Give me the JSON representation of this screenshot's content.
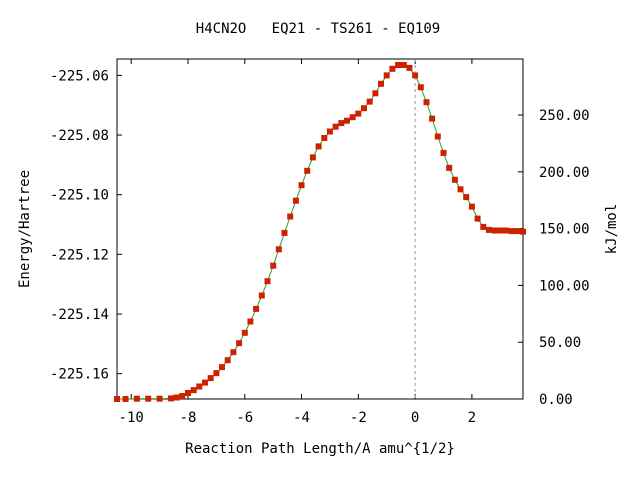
{
  "chart_data": {
    "type": "line",
    "title": "H4CN2O   EQ21 - TS261 - EQ109",
    "xlabel": "Reaction Path Length/A amu^{1/2}",
    "ylabel": "Energy/Hartree",
    "y2label": "kJ/mol",
    "xlim": [
      -10.5,
      3.8
    ],
    "ylim": [
      -225.1685,
      -225.0545
    ],
    "x_ticks": [
      -10,
      -8,
      -6,
      -4,
      -2,
      0,
      2
    ],
    "x_tick_labels": [
      "-10",
      "-8",
      "-6",
      "-4",
      "-2",
      "0",
      "2"
    ],
    "y_ticks": [
      -225.06,
      -225.08,
      -225.1,
      -225.12,
      -225.14,
      -225.16
    ],
    "y_tick_labels": [
      "-225.06",
      "-225.08",
      "-225.10",
      "-225.12",
      "-225.14",
      "-225.16"
    ],
    "y2_ticks": [
      0,
      50,
      100,
      150,
      200,
      250
    ],
    "y2_tick_labels": [
      "0.00",
      "50.00",
      "100.00",
      "150.00",
      "200.00",
      "250.00"
    ],
    "y2_zero_energy": -225.1685,
    "hartree_to_kj": 2625.5,
    "ts_marker_x": 0,
    "grid": false,
    "colors": {
      "line": "#2ca02c",
      "marker": "#cc2200",
      "ts_line": "#999999"
    },
    "series": [
      {
        "x": [
          -10.5,
          -10.2,
          -9.8,
          -9.4,
          -9.0,
          -8.6,
          -8.4,
          -8.2,
          -8.0,
          -7.8,
          -7.6,
          -7.4,
          -7.2,
          -7.0,
          -6.8,
          -6.6,
          -6.4,
          -6.2,
          -6.0,
          -5.8,
          -5.6,
          -5.4,
          -5.2,
          -5.0,
          -4.8,
          -4.6,
          -4.4,
          -4.2,
          -4.0,
          -3.8,
          -3.6,
          -3.4,
          -3.2,
          -3.0,
          -2.8,
          -2.6,
          -2.4,
          -2.2,
          -2.0,
          -1.8,
          -1.6,
          -1.4,
          -1.2,
          -1.0,
          -0.8,
          -0.6,
          -0.4,
          -0.2,
          0.0,
          0.2,
          0.4,
          0.6,
          0.8,
          1.0,
          1.2,
          1.4,
          1.6,
          1.8,
          2.0,
          2.2,
          2.4,
          2.6,
          2.8,
          3.0,
          3.2,
          3.4,
          3.6,
          3.8
        ],
        "y": [
          -225.1685,
          -225.1685,
          -225.1684,
          -225.1684,
          -225.1684,
          -225.1683,
          -225.168,
          -225.1675,
          -225.1665,
          -225.1655,
          -225.1643,
          -225.163,
          -225.1615,
          -225.1598,
          -225.1578,
          -225.1555,
          -225.1528,
          -225.1498,
          -225.1463,
          -225.1425,
          -225.1383,
          -225.1338,
          -225.129,
          -225.1238,
          -225.1183,
          -225.1128,
          -225.1073,
          -225.102,
          -225.0968,
          -225.092,
          -225.0875,
          -225.0838,
          -225.081,
          -225.0788,
          -225.0772,
          -225.076,
          -225.0752,
          -225.074,
          -225.0728,
          -225.071,
          -225.0688,
          -225.066,
          -225.0628,
          -225.06,
          -225.0578,
          -225.0565,
          -225.0565,
          -225.0575,
          -225.06,
          -225.064,
          -225.069,
          -225.0745,
          -225.0805,
          -225.086,
          -225.091,
          -225.095,
          -225.0982,
          -225.1008,
          -225.104,
          -225.108,
          -225.1108,
          -225.1118,
          -225.112,
          -225.112,
          -225.112,
          -225.1122,
          -225.1122,
          -225.1124
        ]
      }
    ]
  }
}
